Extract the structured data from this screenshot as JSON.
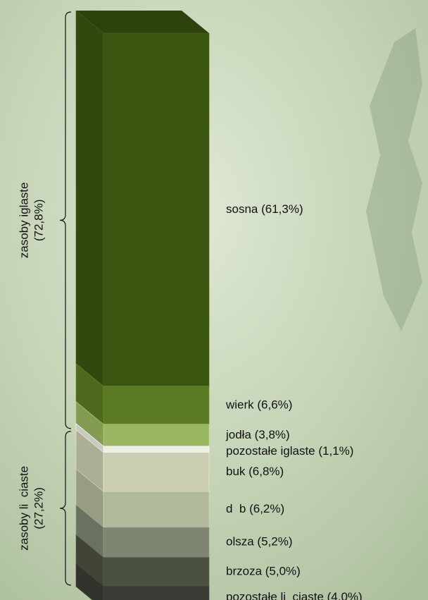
{
  "chart_data": {
    "type": "stacked-column",
    "values": [
      61.3,
      6.6,
      3.8,
      1.1,
      6.8,
      6.2,
      5.2,
      5.0,
      4.0
    ],
    "value_labels": [
      "sosna (61,3%)",
      "wierk (6,6%)",
      "jodła (3,8%)",
      "pozostałe iglaste (1,1%)",
      "buk (6,8%)",
      "d  b (6,2%)",
      "olsza (5,2%)",
      "brzoza (5,0%)",
      "pozostałe li  ciaste (4,0%)"
    ],
    "colors": [
      "#3b5511",
      "#5b7b22",
      "#9ab662",
      "#eceee4",
      "#cacdb0",
      "#b1b99b",
      "#7e8571",
      "#4b5141",
      "#393d35"
    ],
    "groups": [
      {
        "label": "zasoby iglaste",
        "value": 72.8,
        "value_label": "(72,8%)"
      },
      {
        "label": "zasoby li  ciaste",
        "value": 27.2,
        "value_label": "(27,2%)"
      }
    ]
  }
}
